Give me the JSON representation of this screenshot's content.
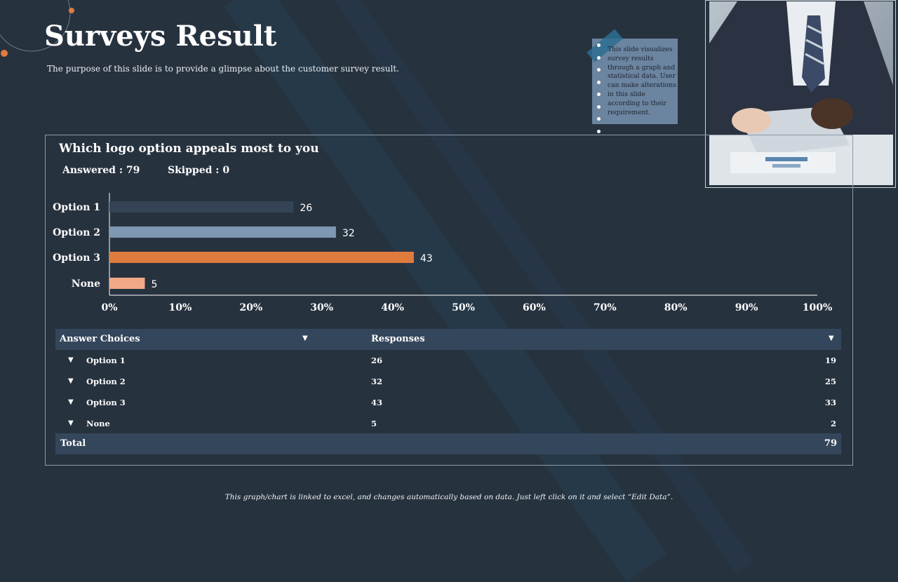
{
  "slide": {
    "title": "Surveys Result",
    "subtitle": "The purpose of this slide is to provide a glimpse about the customer survey result.",
    "note_text": "This slide visualizes survey results through a graph and statistical data. User can make alterations in this slide according to their requirement.",
    "footer": "This graph/chart is linked to excel, and changes automatically based on data. Just left click on it and select “Edit Data”.",
    "photo_icon": "business-person-signing-document-photo"
  },
  "survey": {
    "question": "Which logo option appeals most to you",
    "answered": "Answered : 79",
    "skipped": "Skipped : 0"
  },
  "chart_data": {
    "type": "bar",
    "orientation": "horizontal",
    "title": "Which logo option appeals most to you",
    "categories": [
      "Option 1",
      "Option 2",
      "Option 3",
      "None"
    ],
    "values": [
      26,
      32,
      43,
      5
    ],
    "data_labels": [
      "26",
      "32",
      "43",
      "5"
    ],
    "colors": [
      "#344456",
      "#7e97b3",
      "#e07b3e",
      "#f0a987"
    ],
    "xlim": [
      0,
      100
    ],
    "x_ticks": [
      "0%",
      "10%",
      "20%",
      "30%",
      "40%",
      "50%",
      "60%",
      "70%",
      "80%",
      "90%",
      "100%"
    ],
    "grid": false,
    "legend": "none"
  },
  "table": {
    "headers": {
      "choices": "Answer Choices",
      "responses": "Responses"
    },
    "rows": [
      {
        "choice": "Option 1",
        "responses": "26",
        "count": "19"
      },
      {
        "choice": "Option 2",
        "responses": "32",
        "count": "25"
      },
      {
        "choice": "Option 3",
        "responses": "43",
        "count": "33"
      },
      {
        "choice": "None",
        "responses": "5",
        "count": "2"
      }
    ],
    "total_label": "Total",
    "total_value": "79",
    "caret": "▼"
  },
  "colors": {
    "background": "#27323f",
    "accent": "#e07b3e",
    "header_bg": "#34465b"
  }
}
